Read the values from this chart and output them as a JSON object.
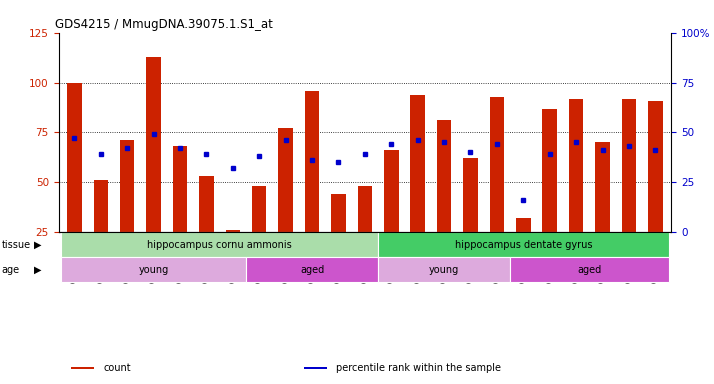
{
  "title": "GDS4215 / MmugDNA.39075.1.S1_at",
  "samples": [
    "GSM297138",
    "GSM297139",
    "GSM297140",
    "GSM297141",
    "GSM297142",
    "GSM297143",
    "GSM297144",
    "GSM297145",
    "GSM297146",
    "GSM297147",
    "GSM297148",
    "GSM297149",
    "GSM297150",
    "GSM297151",
    "GSM297152",
    "GSM297153",
    "GSM297154",
    "GSM297155",
    "GSM297156",
    "GSM297157",
    "GSM297158",
    "GSM297159",
    "GSM297160"
  ],
  "counts": [
    100,
    51,
    71,
    113,
    68,
    53,
    26,
    48,
    77,
    96,
    44,
    48,
    66,
    94,
    81,
    62,
    93,
    32,
    87,
    92,
    70,
    92,
    91
  ],
  "percentiles": [
    47,
    39,
    42,
    49,
    42,
    39,
    32,
    38,
    46,
    36,
    35,
    39,
    44,
    46,
    45,
    40,
    44,
    16,
    39,
    45,
    41,
    43,
    41
  ],
  "bar_color": "#cc2200",
  "dot_color": "#0000cc",
  "ylim_left": [
    25,
    125
  ],
  "ylim_right": [
    0,
    100
  ],
  "yticks_left": [
    25,
    50,
    75,
    100,
    125
  ],
  "yticks_right": [
    0,
    25,
    50,
    75,
    100
  ],
  "grid_lines": [
    50,
    75,
    100
  ],
  "tissue_groups": [
    {
      "label": "hippocampus cornu ammonis",
      "start": 0,
      "end": 12,
      "color": "#aaddaa"
    },
    {
      "label": "hippocampus dentate gyrus",
      "start": 12,
      "end": 23,
      "color": "#44cc66"
    }
  ],
  "age_groups": [
    {
      "label": "young",
      "start": 0,
      "end": 7,
      "color": "#ddaadd"
    },
    {
      "label": "aged",
      "start": 7,
      "end": 12,
      "color": "#cc55cc"
    },
    {
      "label": "young",
      "start": 12,
      "end": 17,
      "color": "#ddaadd"
    },
    {
      "label": "aged",
      "start": 17,
      "end": 23,
      "color": "#cc55cc"
    }
  ],
  "legend_items": [
    {
      "label": "count",
      "color": "#cc2200"
    },
    {
      "label": "percentile rank within the sample",
      "color": "#0000cc"
    }
  ],
  "fig_bg": "#ffffff",
  "plot_bg": "#ffffff",
  "bar_width": 0.55
}
